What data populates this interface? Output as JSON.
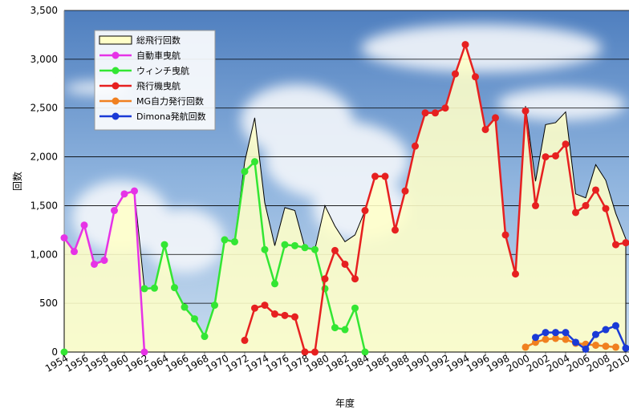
{
  "chart_data": {
    "type": "line",
    "x_label": "年度",
    "y_label": "回数",
    "x": [
      1954,
      1955,
      1956,
      1957,
      1958,
      1959,
      1960,
      1961,
      1962,
      1963,
      1964,
      1965,
      1966,
      1967,
      1968,
      1969,
      1970,
      1971,
      1972,
      1973,
      1974,
      1975,
      1976,
      1977,
      1978,
      1979,
      1980,
      1981,
      1982,
      1983,
      1984,
      1985,
      1986,
      1987,
      1988,
      1989,
      1990,
      1991,
      1992,
      1993,
      1994,
      1995,
      1996,
      1997,
      1998,
      1999,
      2000,
      2001,
      2002,
      2003,
      2004,
      2005,
      2006,
      2007,
      2008,
      2009,
      2010
    ],
    "xlim": [
      1954,
      2010
    ],
    "xticks": [
      1954,
      1956,
      1958,
      1960,
      1962,
      1964,
      1966,
      1968,
      1970,
      1972,
      1974,
      1976,
      1978,
      1980,
      1982,
      1984,
      1986,
      1988,
      1990,
      1992,
      1994,
      1996,
      1998,
      2000,
      2002,
      2004,
      2006,
      2008,
      2010
    ],
    "ylim": [
      0,
      3500
    ],
    "yticks": [
      0,
      500,
      {
        "value": 1000,
        "label": "1,000"
      },
      {
        "value": 1500,
        "label": "1,500"
      },
      {
        "value": 2000,
        "label": "2,000"
      },
      {
        "value": 2500,
        "label": "2,500"
      },
      {
        "value": 3000,
        "label": "3,000"
      },
      {
        "value": 3500,
        "label": "3,500"
      }
    ],
    "grid": true,
    "series": [
      {
        "name": "総飛行回数",
        "style": "area",
        "color": "#ffffc8",
        "values": [
          1170,
          1030,
          1300,
          900,
          940,
          1450,
          1620,
          1650,
          650,
          655,
          1100,
          660,
          460,
          340,
          160,
          480,
          1150,
          1130,
          1950,
          2400,
          1530,
          1090,
          1480,
          1450,
          1070,
          1050,
          1500,
          1290,
          1130,
          1200,
          1450,
          1800,
          1800,
          1250,
          1650,
          2110,
          2450,
          2450,
          2500,
          2850,
          3150,
          2820,
          2280,
          2400,
          1200,
          800,
          2520,
          1750,
          2330,
          2350,
          2460,
          1620,
          1580,
          1920,
          1760,
          1420,
          1160
        ]
      },
      {
        "name": "自動車曳航",
        "color": "#e633e6",
        "values": [
          1170,
          1030,
          1300,
          900,
          940,
          1450,
          1620,
          1650,
          0,
          null,
          null,
          null,
          null,
          null,
          null,
          null,
          null,
          null,
          null,
          null,
          null,
          null,
          null,
          null,
          null,
          null,
          null,
          null,
          null,
          null,
          null,
          null,
          null,
          null,
          null,
          null,
          null,
          null,
          null,
          null,
          null,
          null,
          null,
          null,
          null,
          null,
          null,
          null,
          null,
          null,
          null,
          null,
          null,
          null,
          null,
          null,
          null
        ]
      },
      {
        "name": "ウィンチ曳航",
        "color": "#33e633",
        "values": [
          0,
          null,
          null,
          null,
          null,
          null,
          null,
          null,
          650,
          655,
          1100,
          660,
          460,
          340,
          160,
          480,
          1150,
          1130,
          1850,
          1950,
          1050,
          700,
          1100,
          1090,
          1070,
          1050,
          650,
          250,
          230,
          450,
          0,
          null,
          null,
          null,
          null,
          null,
          null,
          null,
          null,
          null,
          null,
          null,
          null,
          null,
          null,
          null,
          null,
          null,
          null,
          null,
          null,
          null,
          null,
          null,
          null,
          null,
          null
        ]
      },
      {
        "name": "飛行機曳航",
        "color": "#e62020",
        "values": [
          null,
          null,
          null,
          null,
          null,
          null,
          null,
          null,
          null,
          null,
          null,
          null,
          null,
          null,
          null,
          null,
          null,
          null,
          120,
          450,
          480,
          390,
          375,
          360,
          0,
          0,
          750,
          1040,
          900,
          750,
          1450,
          1800,
          1800,
          1250,
          1650,
          2110,
          2450,
          2450,
          2500,
          2850,
          3150,
          2820,
          2280,
          2400,
          1200,
          800,
          2470,
          1500,
          2000,
          2010,
          2130,
          1430,
          1500,
          1660,
          1470,
          1100,
          1120
        ]
      },
      {
        "name": "MG自力発行回数",
        "color": "#f08020",
        "values": [
          null,
          null,
          null,
          null,
          null,
          null,
          null,
          null,
          null,
          null,
          null,
          null,
          null,
          null,
          null,
          null,
          null,
          null,
          null,
          null,
          null,
          null,
          null,
          null,
          null,
          null,
          null,
          null,
          null,
          null,
          null,
          null,
          null,
          null,
          null,
          null,
          null,
          null,
          null,
          null,
          null,
          null,
          null,
          null,
          null,
          null,
          50,
          100,
          130,
          140,
          130,
          90,
          80,
          70,
          60,
          50,
          null
        ]
      },
      {
        "name": "Dimona発航回数",
        "color": "#1a3ad6",
        "values": [
          null,
          null,
          null,
          null,
          null,
          null,
          null,
          null,
          null,
          null,
          null,
          null,
          null,
          null,
          null,
          null,
          null,
          null,
          null,
          null,
          null,
          null,
          null,
          null,
          null,
          null,
          null,
          null,
          null,
          null,
          null,
          null,
          null,
          null,
          null,
          null,
          null,
          null,
          null,
          null,
          null,
          null,
          null,
          null,
          null,
          null,
          null,
          150,
          200,
          200,
          200,
          100,
          30,
          180,
          230,
          270,
          40
        ]
      }
    ]
  }
}
